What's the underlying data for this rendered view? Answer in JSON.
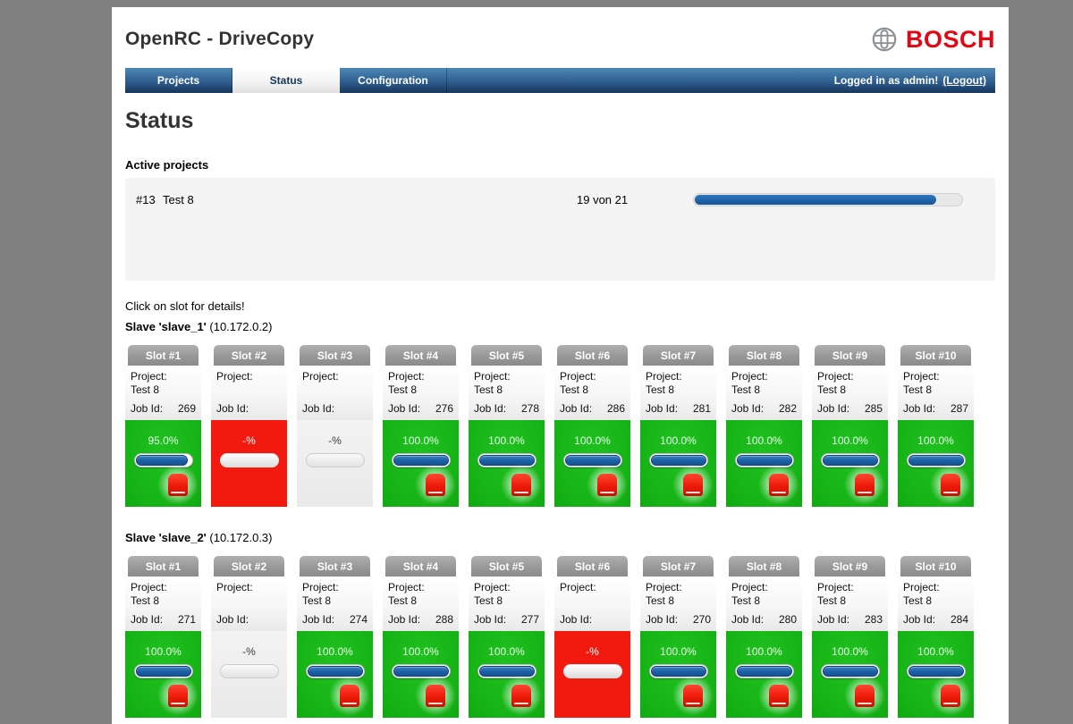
{
  "app": {
    "title": "OpenRC - DriveCopy",
    "brand": "BOSCH"
  },
  "nav": {
    "tabs": [
      {
        "label": "Projects",
        "active": false
      },
      {
        "label": "Status",
        "active": true
      },
      {
        "label": "Configuration",
        "active": false
      }
    ],
    "user_status": "Logged in as admin!",
    "logout_label": "(Logout)"
  },
  "page": {
    "heading": "Status",
    "active_projects_title": "Active projects",
    "hint": "Click on slot for details!"
  },
  "labels": {
    "project": "Project:",
    "job": "Job Id:"
  },
  "active_project": {
    "id": "#13",
    "name": "Test 8",
    "progress_text": "19 von 21",
    "progress_percent": 90.5
  },
  "colors": {
    "bosch_red": "#e30613",
    "nav_blue_top": "#4d87b5",
    "nav_blue_bottom": "#16365c",
    "active_green": "#16b316",
    "error_red": "#f2190f",
    "progress_blue": "#1c60a4"
  },
  "slaves": [
    {
      "name": "Slave 'slave_1'",
      "ip": "(10.172.0.2)",
      "slots": [
        {
          "label": "Slot #1",
          "project": "Test 8",
          "job_id": "269",
          "status": "active",
          "percent_text": "95.0%",
          "percent": 95
        },
        {
          "label": "Slot #2",
          "project": "",
          "job_id": "",
          "status": "error",
          "percent_text": "-%",
          "percent": 0
        },
        {
          "label": "Slot #3",
          "project": "",
          "job_id": "",
          "status": "empty",
          "percent_text": "-%",
          "percent": 0
        },
        {
          "label": "Slot #4",
          "project": "Test 8",
          "job_id": "276",
          "status": "active",
          "percent_text": "100.0%",
          "percent": 100
        },
        {
          "label": "Slot #5",
          "project": "Test 8",
          "job_id": "278",
          "status": "active",
          "percent_text": "100.0%",
          "percent": 100
        },
        {
          "label": "Slot #6",
          "project": "Test 8",
          "job_id": "286",
          "status": "active",
          "percent_text": "100.0%",
          "percent": 100
        },
        {
          "label": "Slot #7",
          "project": "Test 8",
          "job_id": "281",
          "status": "active",
          "percent_text": "100.0%",
          "percent": 100
        },
        {
          "label": "Slot #8",
          "project": "Test 8",
          "job_id": "282",
          "status": "active",
          "percent_text": "100.0%",
          "percent": 100
        },
        {
          "label": "Slot #9",
          "project": "Test 8",
          "job_id": "285",
          "status": "active",
          "percent_text": "100.0%",
          "percent": 100
        },
        {
          "label": "Slot #10",
          "project": "Test 8",
          "job_id": "287",
          "status": "active",
          "percent_text": "100.0%",
          "percent": 100
        }
      ]
    },
    {
      "name": "Slave 'slave_2'",
      "ip": "(10.172.0.3)",
      "slots": [
        {
          "label": "Slot #1",
          "project": "Test 8",
          "job_id": "271",
          "status": "active",
          "percent_text": "100.0%",
          "percent": 100
        },
        {
          "label": "Slot #2",
          "project": "",
          "job_id": "",
          "status": "empty",
          "percent_text": "-%",
          "percent": 0
        },
        {
          "label": "Slot #3",
          "project": "Test 8",
          "job_id": "274",
          "status": "active",
          "percent_text": "100.0%",
          "percent": 100
        },
        {
          "label": "Slot #4",
          "project": "Test 8",
          "job_id": "288",
          "status": "active",
          "percent_text": "100.0%",
          "percent": 100
        },
        {
          "label": "Slot #5",
          "project": "Test 8",
          "job_id": "277",
          "status": "active",
          "percent_text": "100.0%",
          "percent": 100
        },
        {
          "label": "Slot #6",
          "project": "",
          "job_id": "",
          "status": "error",
          "percent_text": "-%",
          "percent": 0
        },
        {
          "label": "Slot #7",
          "project": "Test 8",
          "job_id": "270",
          "status": "active",
          "percent_text": "100.0%",
          "percent": 100
        },
        {
          "label": "Slot #8",
          "project": "Test 8",
          "job_id": "280",
          "status": "active",
          "percent_text": "100.0%",
          "percent": 100
        },
        {
          "label": "Slot #9",
          "project": "Test 8",
          "job_id": "283",
          "status": "active",
          "percent_text": "100.0%",
          "percent": 100
        },
        {
          "label": "Slot #10",
          "project": "Test 8",
          "job_id": "284",
          "status": "active",
          "percent_text": "100.0%",
          "percent": 100
        }
      ]
    }
  ]
}
